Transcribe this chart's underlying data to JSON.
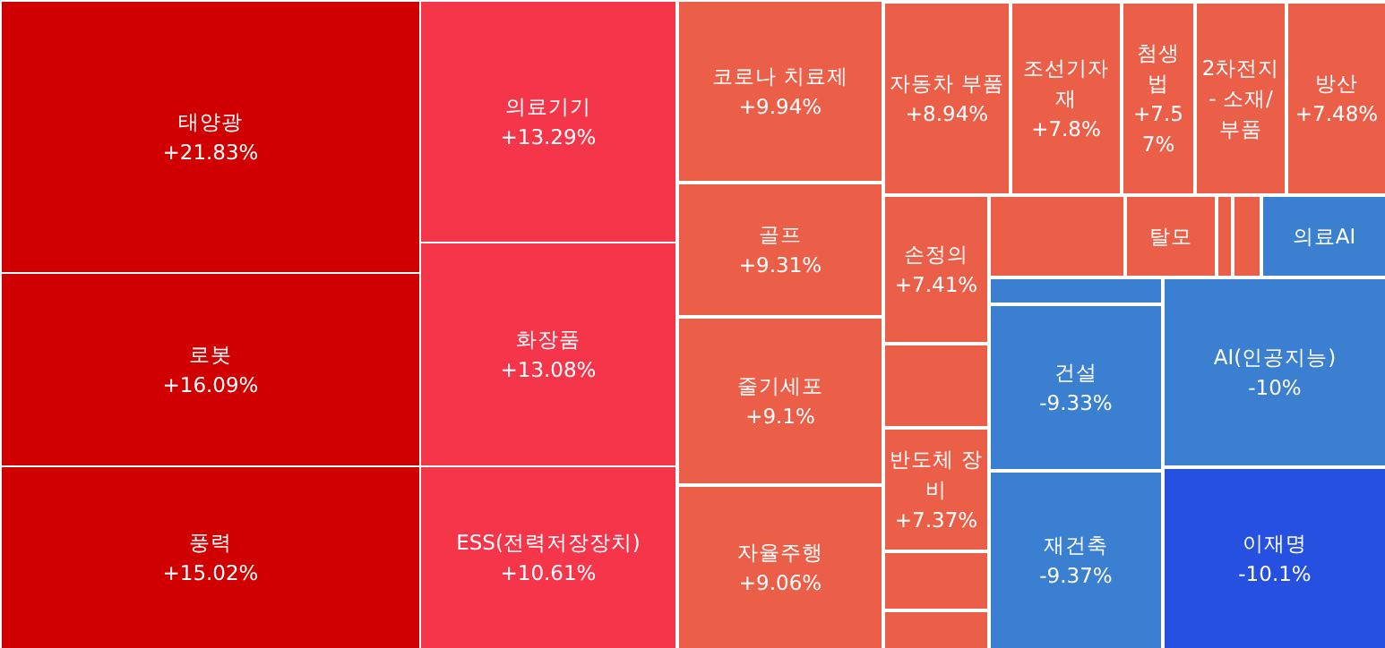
{
  "chart_data": {
    "type": "other",
    "categories": [
      "태양광",
      "로봇",
      "풍력",
      "의료기기",
      "화장품",
      "ESS(전력저장장치)",
      "코로나 치료제",
      "골프",
      "줄기세포",
      "자율주행",
      "자동차 부품",
      "조선기자재",
      "첨생법",
      "2차전지 - 소재/부품",
      "방산",
      "손정의",
      null,
      "반도체 장비",
      null,
      null,
      null,
      "탈모",
      null,
      null,
      "의료AI",
      null,
      "건설",
      "재건축",
      "AI(인공지능)",
      "이재명"
    ],
    "values": [
      21.83,
      16.09,
      15.02,
      13.29,
      13.08,
      10.61,
      9.94,
      9.31,
      9.1,
      9.06,
      8.94,
      7.8,
      7.57,
      null,
      7.48,
      7.41,
      null,
      7.37,
      null,
      null,
      null,
      null,
      null,
      null,
      null,
      null,
      -9.33,
      -9.37,
      -10,
      -10.1
    ],
    "value_labels": [
      "+21.83%",
      "+16.09%",
      "+15.02%",
      "+13.29%",
      "+13.08%",
      "+10.61%",
      "+9.94%",
      "+9.31%",
      "+9.1%",
      "+9.06%",
      "+8.94%",
      "+7.8%",
      "+7.57%",
      null,
      "+7.48%",
      "+7.41%",
      null,
      "+7.37%",
      null,
      null,
      null,
      null,
      null,
      null,
      null,
      null,
      "-9.33%",
      "-9.37%",
      "-10%",
      "-10.1%"
    ],
    "colors": [
      "#d00000",
      "#d00000",
      "#d00000",
      "#f5364a",
      "#f5364a",
      "#f5364a",
      "#eb5f48",
      "#eb5f48",
      "#eb5f48",
      "#eb5f48",
      "#eb5f48",
      "#eb5f48",
      "#eb5f48",
      "#eb5f48",
      "#eb5f48",
      "#eb5f48",
      "#eb5f48",
      "#eb5f48",
      "#eb5f48",
      "#eb5f48",
      "#eb5f48",
      "#eb5f48",
      "#eb5f48",
      "#eb5f48",
      "#3a7fd0",
      "#3a7fd0",
      "#3a7fd0",
      "#3a7fd0",
      "#3a7fd0",
      "#2550e0"
    ]
  }
}
